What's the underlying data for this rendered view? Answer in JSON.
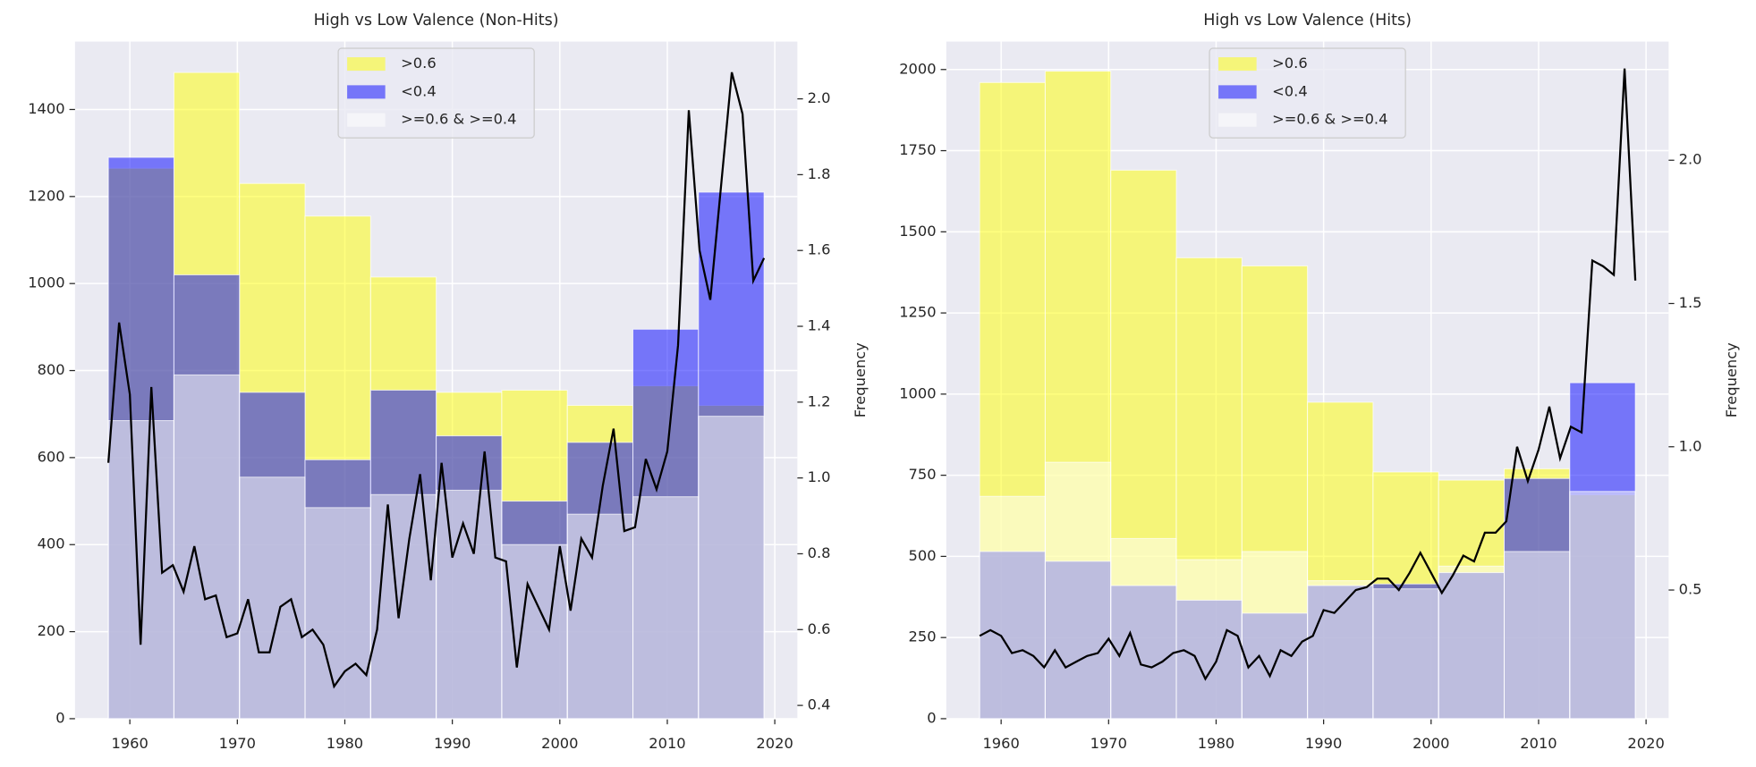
{
  "chart_data": [
    {
      "type": "histogram",
      "title": "High vs Low Valence (Non-Hits)",
      "y2label": "Frequency",
      "legend": "upper center",
      "grid": true,
      "bins": [
        1958,
        1964.1,
        1970.2,
        1976.3,
        1982.4,
        1988.5,
        1994.6,
        2000.7,
        2006.8,
        2012.9,
        2019
      ],
      "series": [
        {
          "name": ">0.6",
          "color": "#ffff00",
          "alpha": 0.5,
          "values": [
            1265,
            1485,
            1230,
            1155,
            1015,
            750,
            755,
            720,
            765,
            720
          ]
        },
        {
          "name": "<0.4",
          "color": "#0000ff",
          "alpha": 0.5,
          "values": [
            1290,
            1020,
            750,
            595,
            755,
            650,
            500,
            635,
            895,
            1210
          ]
        },
        {
          "name": ">=0.6 & >=0.4",
          "color": "#ffffff",
          "alpha": 0.5,
          "values": [
            685,
            790,
            555,
            485,
            515,
            525,
            400,
            470,
            510,
            695
          ]
        }
      ],
      "line": {
        "color": "#000000",
        "axis": "y2",
        "x": [
          1958,
          1959,
          1960,
          1961,
          1962,
          1963,
          1964,
          1965,
          1966,
          1967,
          1968,
          1969,
          1970,
          1971,
          1972,
          1973,
          1974,
          1975,
          1976,
          1977,
          1978,
          1979,
          1980,
          1981,
          1982,
          1983,
          1984,
          1985,
          1986,
          1987,
          1988,
          1989,
          1990,
          1991,
          1992,
          1993,
          1994,
          1995,
          1996,
          1997,
          1998,
          1999,
          2000,
          2001,
          2002,
          2003,
          2004,
          2005,
          2006,
          2007,
          2008,
          2009,
          2010,
          2011,
          2012,
          2013,
          2014,
          2015,
          2016,
          2017,
          2018,
          2019
        ],
        "values": [
          1.04,
          1.41,
          1.22,
          0.56,
          1.24,
          0.75,
          0.77,
          0.7,
          0.82,
          0.68,
          0.69,
          0.58,
          0.59,
          0.68,
          0.54,
          0.54,
          0.66,
          0.68,
          0.58,
          0.6,
          0.56,
          0.45,
          0.49,
          0.51,
          0.48,
          0.6,
          0.93,
          0.63,
          0.84,
          1.01,
          0.73,
          1.04,
          0.79,
          0.88,
          0.8,
          1.07,
          0.79,
          0.78,
          0.5,
          0.72,
          0.66,
          0.6,
          0.82,
          0.65,
          0.84,
          0.79,
          0.98,
          1.13,
          0.86,
          0.87,
          1.05,
          0.97,
          1.07,
          1.35,
          1.97,
          1.6,
          1.47,
          1.77,
          2.07,
          1.96,
          1.52,
          1.58
        ]
      },
      "xlim": [
        1954.9,
        2022.1
      ],
      "xticks": [
        1960,
        1970,
        1980,
        1990,
        2000,
        2010,
        2020
      ],
      "ylim": [
        0,
        1556
      ],
      "yticks": [
        0,
        200,
        400,
        600,
        800,
        1000,
        1200,
        1400
      ],
      "y2lim": [
        0.365,
        2.151
      ],
      "y2ticks": [
        0.4,
        0.6,
        0.8,
        {
          "value": 1,
          "label": "1.0"
        },
        1.2,
        1.4,
        1.6,
        1.8,
        {
          "value": 2,
          "label": "2.0"
        }
      ]
    },
    {
      "type": "histogram",
      "title": "High vs Low Valence (Hits)",
      "y2label": "Frequency",
      "legend": "upper center",
      "grid": true,
      "bins": [
        1958,
        1964.1,
        1970.2,
        1976.3,
        1982.4,
        1988.5,
        1994.6,
        2000.7,
        2006.8,
        2012.9,
        2019
      ],
      "series": [
        {
          "name": ">0.6",
          "color": "#ffff00",
          "alpha": 0.5,
          "values": [
            1960,
            1995,
            1690,
            1420,
            1395,
            975,
            760,
            735,
            770,
            690
          ]
        },
        {
          "name": "<0.4",
          "color": "#0000ff",
          "alpha": 0.5,
          "values": [
            515,
            485,
            410,
            365,
            325,
            410,
            415,
            450,
            740,
            1035
          ]
        },
        {
          "name": ">=0.6 & >=0.4",
          "color": "#ffffff",
          "alpha": 0.5,
          "values": [
            685,
            790,
            555,
            490,
            515,
            425,
            400,
            470,
            515,
            700
          ]
        }
      ],
      "line": {
        "color": "#000000",
        "axis": "y2",
        "x": [
          1958,
          1959,
          1960,
          1961,
          1962,
          1963,
          1964,
          1965,
          1966,
          1967,
          1968,
          1969,
          1970,
          1971,
          1972,
          1973,
          1974,
          1975,
          1976,
          1977,
          1978,
          1979,
          1980,
          1981,
          1982,
          1983,
          1984,
          1985,
          1986,
          1987,
          1988,
          1989,
          1990,
          1991,
          1992,
          1993,
          1994,
          1995,
          1996,
          1997,
          1998,
          1999,
          2000,
          2001,
          2002,
          2003,
          2004,
          2005,
          2006,
          2007,
          2008,
          2009,
          2010,
          2011,
          2012,
          2013,
          2014,
          2015,
          2016,
          2017,
          2018,
          2019
        ],
        "values": [
          0.34,
          0.36,
          0.34,
          0.28,
          0.29,
          0.27,
          0.23,
          0.29,
          0.23,
          0.25,
          0.27,
          0.28,
          0.33,
          0.27,
          0.35,
          0.24,
          0.23,
          0.25,
          0.28,
          0.29,
          0.27,
          0.19,
          0.25,
          0.36,
          0.34,
          0.23,
          0.27,
          0.2,
          0.29,
          0.27,
          0.32,
          0.34,
          0.43,
          0.42,
          0.46,
          0.5,
          0.51,
          0.54,
          0.54,
          0.5,
          0.56,
          0.63,
          0.56,
          0.49,
          0.55,
          0.62,
          0.6,
          0.7,
          0.7,
          0.74,
          1.0,
          0.88,
          0.99,
          1.14,
          0.96,
          1.07,
          1.05,
          1.65,
          1.63,
          1.6,
          2.32,
          1.58
        ]
      },
      "xlim": [
        1954.9,
        2022.1
      ],
      "xticks": [
        1960,
        1970,
        1980,
        1990,
        2000,
        2010,
        2020
      ],
      "ylim": [
        0,
        2086
      ],
      "yticks": [
        0,
        250,
        500,
        750,
        1000,
        1250,
        1500,
        1750,
        2000
      ],
      "y2lim": [
        0.051,
        2.414
      ],
      "y2ticks": [
        0.5,
        {
          "value": 1,
          "label": "1.0"
        },
        1.5,
        {
          "value": 2,
          "label": "2.0"
        }
      ]
    }
  ]
}
